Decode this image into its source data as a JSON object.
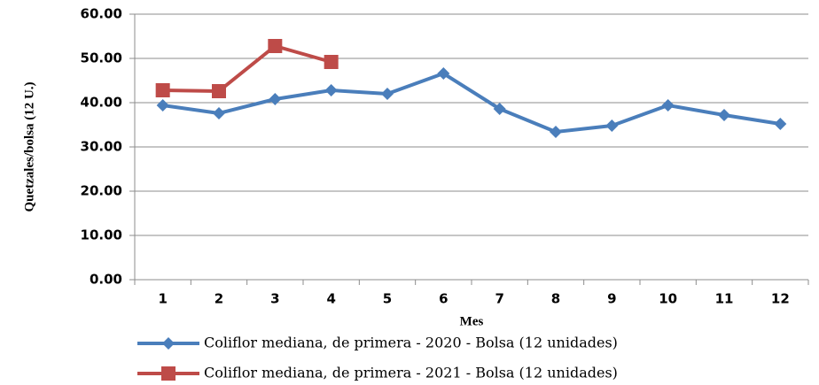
{
  "chart_data": {
    "type": "line",
    "x_label": "Mes",
    "y_label": "Quetzales/bolsa (12 U.)",
    "categories": [
      "1",
      "2",
      "3",
      "4",
      "5",
      "6",
      "7",
      "8",
      "9",
      "10",
      "11",
      "12"
    ],
    "series": [
      {
        "name": "Coliflor mediana, de primera - 2020 - Bolsa (12 unidades)",
        "color": "#4a7ebb",
        "marker": "diamond",
        "values": [
          39.4,
          37.6,
          40.8,
          42.8,
          42.0,
          46.6,
          38.6,
          33.4,
          34.8,
          39.4,
          37.2,
          35.2
        ]
      },
      {
        "name": "Coliflor mediana, de primera - 2021 - Bolsa (12 unidades)",
        "color": "#be4b48",
        "marker": "square",
        "values": [
          42.8,
          42.6,
          52.8,
          49.2,
          null,
          null,
          null,
          null,
          null,
          null,
          null,
          null
        ]
      }
    ],
    "ylim": [
      0,
      60
    ],
    "yticks": [
      {
        "value": 0,
        "label": "0.00"
      },
      {
        "value": 10,
        "label": "10.00"
      },
      {
        "value": 20,
        "label": "20.00"
      },
      {
        "value": 30,
        "label": "30.00"
      },
      {
        "value": 40,
        "label": "40.00"
      },
      {
        "value": 50,
        "label": "50.00"
      },
      {
        "value": 60,
        "label": "60.00"
      }
    ],
    "grid": true,
    "legend": "bottom"
  }
}
